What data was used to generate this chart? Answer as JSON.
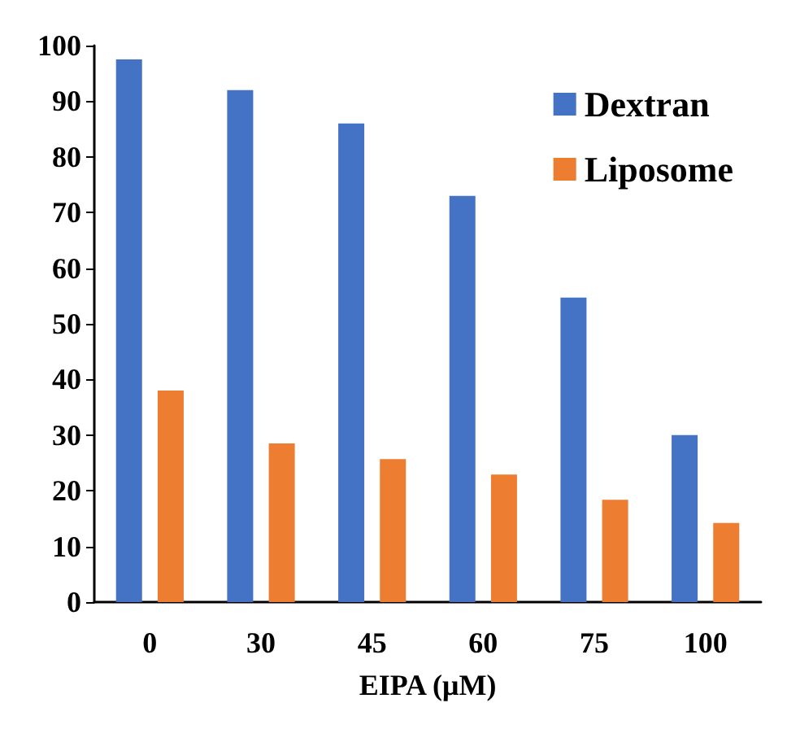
{
  "chart_data": {
    "type": "bar",
    "xlabel": "EIPA (μM)",
    "categories": [
      "0",
      "30",
      "45",
      "60",
      "75",
      "100"
    ],
    "series": [
      {
        "name": "Dextran",
        "color": "#4472c4",
        "values": [
          97.5,
          92,
          86,
          73,
          54.7,
          30
        ]
      },
      {
        "name": "Liposome",
        "color": "#ed7d31",
        "values": [
          38,
          28.5,
          25.7,
          22.9,
          18.4,
          14.2
        ]
      }
    ],
    "ylim": [
      0,
      100
    ],
    "yticks": [
      0,
      10,
      20,
      30,
      40,
      50,
      60,
      70,
      80,
      90,
      100
    ],
    "grid": false,
    "legend": "top right"
  }
}
